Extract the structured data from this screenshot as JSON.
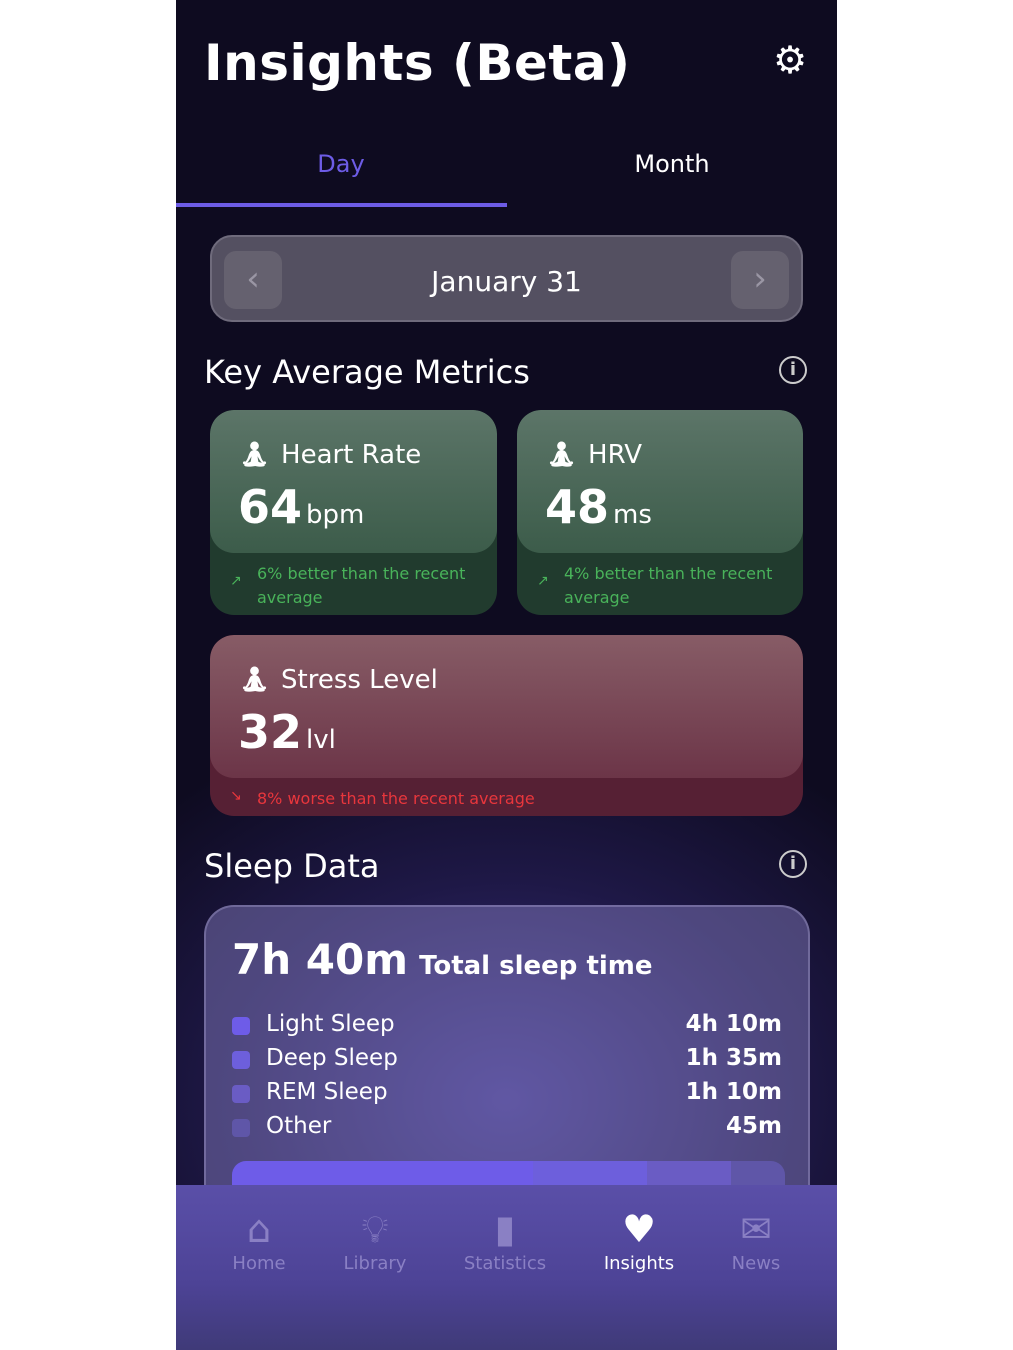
{
  "header": {
    "title": "Insights (Beta)",
    "settings_icon": "gear-icon"
  },
  "tabs": [
    {
      "label": "Day",
      "active": true
    },
    {
      "label": "Month",
      "active": false
    }
  ],
  "date_nav": {
    "date": "January 31",
    "prev_icon": "chevron-left-icon",
    "next_icon": "chevron-right-icon"
  },
  "metrics": {
    "title": "Key Average Metrics",
    "cards": [
      {
        "label": "Heart Rate",
        "value": "64",
        "unit": "bpm",
        "trend": "6% better than the recent",
        "trend2": "average",
        "direction": "up",
        "color": "#49b35a"
      },
      {
        "label": "HRV",
        "value": "48",
        "unit": "ms",
        "trend": "4% better than the recent",
        "trend2": "average",
        "direction": "up",
        "color": "#49b35a"
      },
      {
        "label": "Stress Level",
        "value": "32",
        "unit": "lvl",
        "trend": "8% worse than the recent average",
        "direction": "down",
        "color": "#e8363c"
      }
    ]
  },
  "sleep": {
    "title": "Sleep Data",
    "total": "7h 40m",
    "total_label": "Total sleep time",
    "stages": [
      {
        "name": "Light Sleep",
        "time": "4h 10m",
        "minutes": 250,
        "color": "#6e5ce8"
      },
      {
        "name": "Deep Sleep",
        "time": "1h 35m",
        "minutes": 95,
        "color": "#6d5fdc"
      },
      {
        "name": "REM Sleep",
        "time": "1h 10m",
        "minutes": 70,
        "color": "#6a5cc4"
      },
      {
        "name": "Other",
        "time": "45m",
        "minutes": 45,
        "color": "#5f56a8"
      }
    ]
  },
  "bottom_nav": [
    {
      "label": "Home",
      "icon": "home-icon",
      "active": false
    },
    {
      "label": "Library",
      "icon": "lightbulb-icon",
      "active": false
    },
    {
      "label": "Statistics",
      "icon": "bar-chart-icon",
      "active": false
    },
    {
      "label": "Insights",
      "icon": "heart-icon",
      "active": true
    },
    {
      "label": "News",
      "icon": "mail-icon",
      "active": false
    }
  ]
}
